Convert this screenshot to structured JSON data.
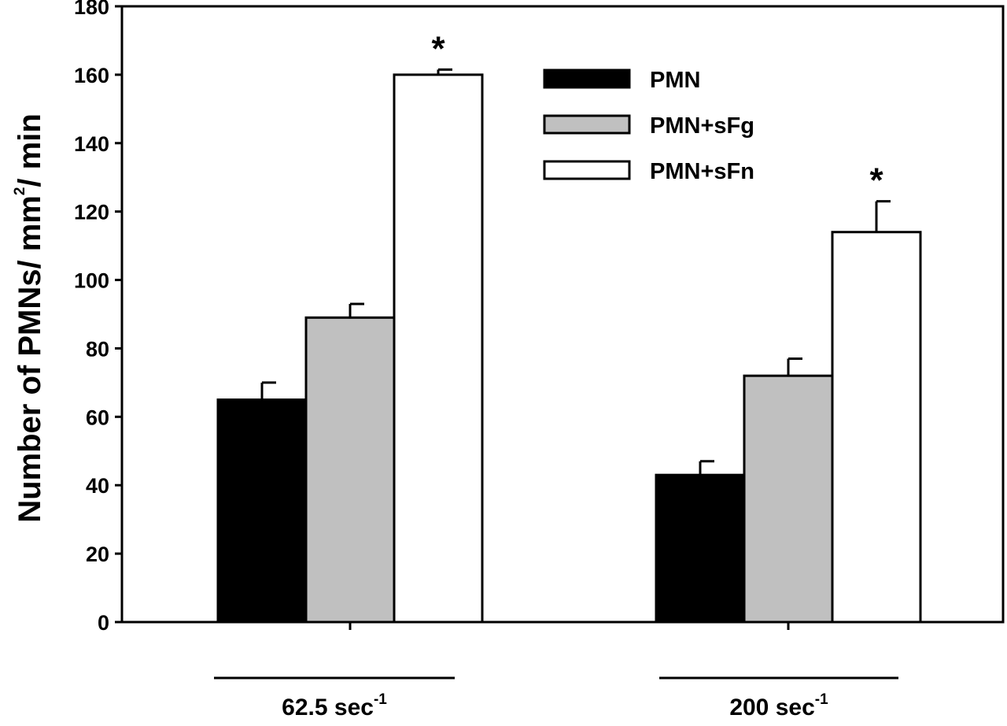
{
  "chart_data": {
    "type": "bar",
    "title": "",
    "xlabel": "",
    "ylabel": "Number of PMNs/ mm²/ min",
    "ylabel_parts": {
      "before": "Number of PMNs/ mm",
      "sup": "2",
      "after": "/ min"
    },
    "ylim": [
      0,
      180
    ],
    "yticks": [
      "0",
      "20",
      "40",
      "60",
      "80",
      "100",
      "120",
      "140",
      "160",
      "180"
    ],
    "categories": [
      "62.5 sec-1",
      "200 sec-1"
    ],
    "category_labels": [
      {
        "base": "62.5 sec",
        "sup": "-1"
      },
      {
        "base": "200 sec",
        "sup": "-1"
      }
    ],
    "series": [
      {
        "name": "PMN",
        "color": "#000000",
        "values": [
          65,
          43
        ],
        "errors": [
          5,
          4
        ]
      },
      {
        "name": "PMN+sFg",
        "color": "#c0c0c0",
        "values": [
          89,
          72
        ],
        "errors": [
          4,
          5
        ]
      },
      {
        "name": "PMN+sFn",
        "color": "#ffffff",
        "values": [
          160,
          114
        ],
        "errors": [
          1.5,
          9
        ]
      }
    ],
    "annotations": [
      {
        "text": "*",
        "category": 0,
        "series": 2
      },
      {
        "text": "*",
        "category": 1,
        "series": 2
      }
    ],
    "legend": {
      "position": "top-right"
    },
    "grid": false
  }
}
